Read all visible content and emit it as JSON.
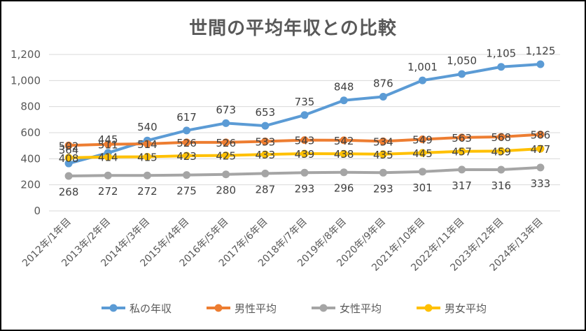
{
  "chart_data": {
    "type": "line",
    "title": "世間の平均年収との比較",
    "xlabel": "",
    "ylabel": "",
    "ylim": [
      0,
      1200
    ],
    "yticks": [
      "0",
      "200",
      "400",
      "600",
      "800",
      "1,000",
      "1,200"
    ],
    "ytick_values": [
      0,
      200,
      400,
      600,
      800,
      1000,
      1200
    ],
    "grid": true,
    "legend_position": "bottom",
    "categories": [
      "2012年/1年目",
      "2013年/2年目",
      "2014年/3年目",
      "2015年/4年目",
      "2016年/5年目",
      "2017年/6年目",
      "2018年/7年目",
      "2019年/8年目",
      "2020年/9年目",
      "2021年/10年目",
      "2022年/11年目",
      "2023年/12年目",
      "2024年/13年目"
    ],
    "series": [
      {
        "name": "私の年収",
        "color": "#5B9BD5",
        "values": [
          364,
          445,
          540,
          617,
          673,
          653,
          735,
          848,
          876,
          1001,
          1050,
          1105,
          1125
        ],
        "labels": [
          "364",
          "445",
          "540",
          "617",
          "673",
          "653",
          "735",
          "848",
          "876",
          "1,001",
          "1,050",
          "1,105",
          "1,125"
        ],
        "label_pos": "above"
      },
      {
        "name": "男性平均",
        "color": "#ED7D31",
        "values": [
          502,
          511,
          514,
          526,
          526,
          533,
          543,
          542,
          534,
          549,
          563,
          568,
          586
        ],
        "labels": [
          "502",
          "511",
          "514",
          "526",
          "526",
          "533",
          "543",
          "542",
          "534",
          "549",
          "563",
          "568",
          "586"
        ],
        "label_pos": "center"
      },
      {
        "name": "女性平均",
        "color": "#A5A5A5",
        "values": [
          268,
          272,
          272,
          275,
          280,
          287,
          293,
          296,
          293,
          301,
          317,
          316,
          333
        ],
        "labels": [
          "268",
          "272",
          "272",
          "275",
          "280",
          "287",
          "293",
          "296",
          "293",
          "301",
          "317",
          "316",
          "333"
        ],
        "label_pos": "below"
      },
      {
        "name": "男女平均",
        "color": "#FFC000",
        "values": [
          408,
          414,
          415,
          423,
          425,
          433,
          439,
          438,
          435,
          445,
          457,
          459,
          477
        ],
        "labels": [
          "408",
          "414",
          "415",
          "423",
          "425",
          "433",
          "439",
          "438",
          "435",
          "445",
          "457",
          "459",
          "477"
        ],
        "label_pos": "center"
      }
    ]
  }
}
